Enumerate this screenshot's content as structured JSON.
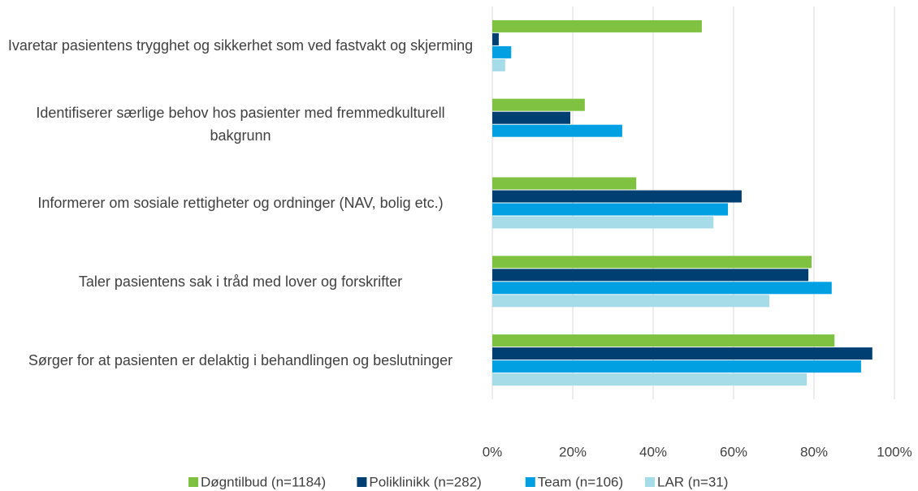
{
  "chart_data": {
    "type": "hbar",
    "categories": [
      "Ivaretar pasientens trygghet og sikkerhet som ved fastvakt og skjerming",
      "Identifiserer særlige behov hos pasienter med fremmedkulturell bakgrunn",
      "Informerer om sosiale rettigheter og ordninger (NAV, bolig etc.)",
      "Taler pasientens sak i tråd med lover og forskrifter",
      "Sørger for at pasienten er delaktig i behandlingen og beslutninger"
    ],
    "series": [
      {
        "name": "Døgntilbud (n=1184)",
        "color": "#7fc241",
        "values": [
          52.1,
          23,
          35.8,
          79.4,
          85.1
        ]
      },
      {
        "name": "Poliklinikk (n=282)",
        "color": "#003f72",
        "values": [
          1.6,
          19.4,
          62,
          78.6,
          94.5
        ]
      },
      {
        "name": "Team (n=106)",
        "color": "#00a0e3",
        "values": [
          4.7,
          32.3,
          58.6,
          84.4,
          91.7
        ]
      },
      {
        "name": "LAR (n=31)",
        "color": "#a6dbe8",
        "values": [
          3.2,
          0,
          55,
          68.9,
          78.2
        ]
      }
    ],
    "xlim": [
      0,
      100
    ],
    "xticks": [
      {
        "value": 0,
        "label": "0%"
      },
      {
        "value": 20,
        "label": "20%"
      },
      {
        "value": 40,
        "label": "40%"
      },
      {
        "value": 60,
        "label": "60%"
      },
      {
        "value": 80,
        "label": "80%"
      },
      {
        "value": 100,
        "label": "100%"
      }
    ],
    "grid": true
  }
}
